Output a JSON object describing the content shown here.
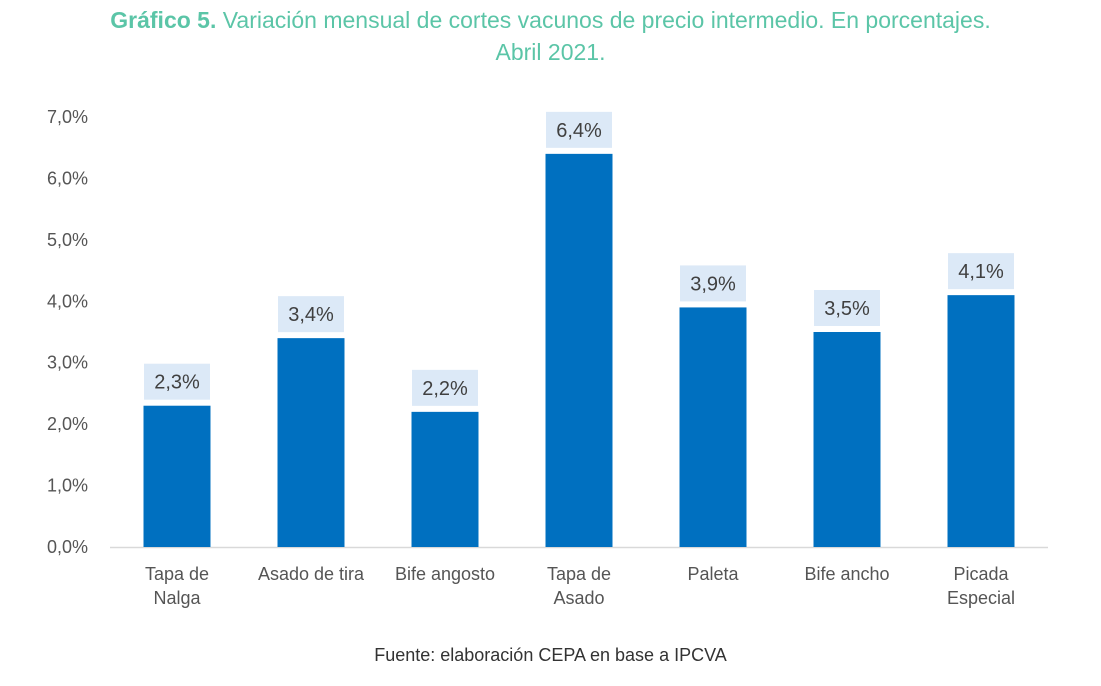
{
  "title": {
    "prefix": "Gráfico 5.",
    "line1": "Variación mensual de cortes vacunos de precio intermedio. En porcentajes.",
    "line2": "Abril 2021."
  },
  "source": "Fuente: elaboración CEPA en base a IPCVA",
  "colors": {
    "title": "#5bc5a7",
    "bar": "#0070c0",
    "label_bg": "#dce9f7"
  },
  "chart_data": {
    "type": "bar",
    "categories": [
      [
        "Tapa de",
        "Nalga"
      ],
      [
        "Asado de tira"
      ],
      [
        "Bife angosto"
      ],
      [
        "Tapa de",
        "Asado"
      ],
      [
        "Paleta"
      ],
      [
        "Bife ancho"
      ],
      [
        "Picada",
        "Especial"
      ]
    ],
    "values": [
      2.3,
      3.4,
      2.2,
      6.4,
      3.9,
      3.5,
      4.1
    ],
    "data_labels": [
      "2,3%",
      "3,4%",
      "2,2%",
      "6,4%",
      "3,9%",
      "3,5%",
      "4,1%"
    ],
    "ylim": [
      0,
      7
    ],
    "yticks": [
      "0,0%",
      "1,0%",
      "2,0%",
      "3,0%",
      "4,0%",
      "5,0%",
      "6,0%",
      "7,0%"
    ],
    "grid": false,
    "legend": "none"
  }
}
